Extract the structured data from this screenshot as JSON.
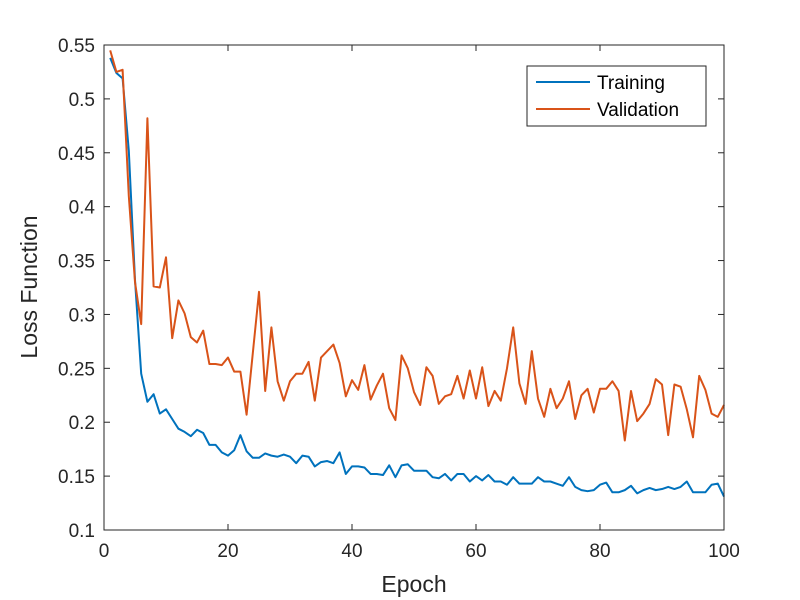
{
  "chart_data": {
    "type": "line",
    "xlabel": "Epoch",
    "ylabel": "Loss Function",
    "xlim": [
      0,
      100
    ],
    "ylim": [
      0.1,
      0.55
    ],
    "xticks": [
      0,
      20,
      40,
      60,
      80,
      100
    ],
    "yticks": [
      0.1,
      0.15,
      0.2,
      0.25,
      0.3,
      0.35,
      0.4,
      0.45,
      0.5,
      0.55
    ],
    "xtick_labels": [
      "0",
      "20",
      "40",
      "60",
      "80",
      "100"
    ],
    "ytick_labels": [
      "0.1",
      "0.15",
      "0.2",
      "0.25",
      "0.3",
      "0.35",
      "0.4",
      "0.45",
      "0.5",
      "0.55"
    ],
    "grid": false,
    "legend_position": "top-right",
    "x": [
      1,
      2,
      3,
      4,
      5,
      6,
      7,
      8,
      9,
      10,
      11,
      12,
      13,
      14,
      15,
      16,
      17,
      18,
      19,
      20,
      21,
      22,
      23,
      24,
      25,
      26,
      27,
      28,
      29,
      30,
      31,
      32,
      33,
      34,
      35,
      36,
      37,
      38,
      39,
      40,
      41,
      42,
      43,
      44,
      45,
      46,
      47,
      48,
      49,
      50,
      51,
      52,
      53,
      54,
      55,
      56,
      57,
      58,
      59,
      60,
      61,
      62,
      63,
      64,
      65,
      66,
      67,
      68,
      69,
      70,
      71,
      72,
      73,
      74,
      75,
      76,
      77,
      78,
      79,
      80,
      81,
      82,
      83,
      84,
      85,
      86,
      87,
      88,
      89,
      90,
      91,
      92,
      93,
      94,
      95,
      96,
      97,
      98,
      99,
      100
    ],
    "series": [
      {
        "name": "Training",
        "color": "#0072BD",
        "values": [
          0.538,
          0.524,
          0.519,
          0.452,
          0.332,
          0.245,
          0.219,
          0.226,
          0.208,
          0.212,
          0.203,
          0.194,
          0.191,
          0.187,
          0.193,
          0.19,
          0.179,
          0.179,
          0.172,
          0.169,
          0.174,
          0.188,
          0.173,
          0.167,
          0.167,
          0.171,
          0.169,
          0.168,
          0.17,
          0.168,
          0.162,
          0.169,
          0.168,
          0.159,
          0.163,
          0.164,
          0.162,
          0.172,
          0.152,
          0.159,
          0.159,
          0.158,
          0.152,
          0.152,
          0.151,
          0.16,
          0.149,
          0.16,
          0.161,
          0.155,
          0.155,
          0.155,
          0.149,
          0.148,
          0.152,
          0.146,
          0.152,
          0.152,
          0.145,
          0.15,
          0.146,
          0.151,
          0.145,
          0.145,
          0.142,
          0.149,
          0.143,
          0.143,
          0.143,
          0.149,
          0.145,
          0.145,
          0.143,
          0.141,
          0.149,
          0.14,
          0.137,
          0.136,
          0.137,
          0.142,
          0.144,
          0.135,
          0.135,
          0.137,
          0.141,
          0.134,
          0.137,
          0.139,
          0.137,
          0.138,
          0.14,
          0.138,
          0.14,
          0.145,
          0.135,
          0.135,
          0.135,
          0.142,
          0.143,
          0.131
        ]
      },
      {
        "name": "Validation",
        "color": "#D95319",
        "values": [
          0.545,
          0.525,
          0.527,
          0.41,
          0.33,
          0.291,
          0.482,
          0.326,
          0.325,
          0.353,
          0.278,
          0.313,
          0.301,
          0.279,
          0.274,
          0.285,
          0.254,
          0.254,
          0.253,
          0.26,
          0.247,
          0.247,
          0.207,
          0.264,
          0.321,
          0.229,
          0.288,
          0.238,
          0.22,
          0.238,
          0.245,
          0.245,
          0.256,
          0.22,
          0.26,
          0.266,
          0.272,
          0.255,
          0.224,
          0.239,
          0.23,
          0.253,
          0.221,
          0.234,
          0.245,
          0.213,
          0.202,
          0.262,
          0.25,
          0.228,
          0.216,
          0.251,
          0.243,
          0.217,
          0.224,
          0.226,
          0.243,
          0.222,
          0.248,
          0.222,
          0.251,
          0.215,
          0.229,
          0.22,
          0.25,
          0.288,
          0.236,
          0.217,
          0.266,
          0.222,
          0.205,
          0.231,
          0.213,
          0.222,
          0.238,
          0.203,
          0.225,
          0.231,
          0.209,
          0.231,
          0.231,
          0.238,
          0.229,
          0.183,
          0.229,
          0.201,
          0.208,
          0.217,
          0.24,
          0.235,
          0.188,
          0.235,
          0.233,
          0.212,
          0.186,
          0.243,
          0.23,
          0.208,
          0.205,
          0.216
        ]
      }
    ]
  }
}
